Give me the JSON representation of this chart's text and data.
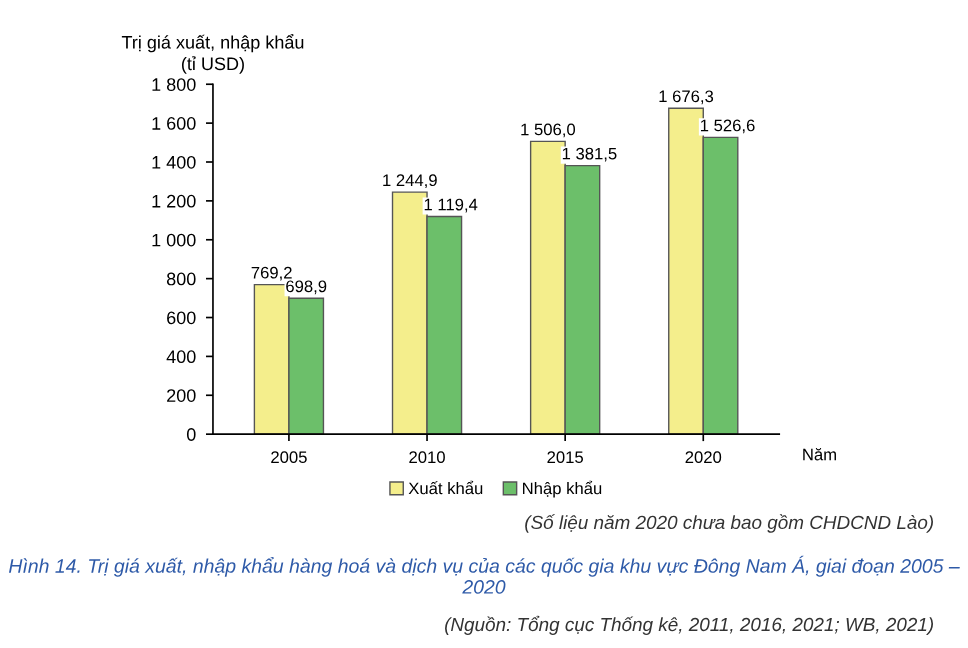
{
  "chart_data": {
    "type": "bar",
    "title": "Hình 14. Trị giá xuất, nhập khẩu hàng hoá và dịch vụ của các quốc gia khu vực Đông Nam Á, giai đoạn 2005 – 2020",
    "ylabel": "Trị giá xuất, nhập khẩu\n(tỉ USD)",
    "xlabel": "Năm",
    "categories": [
      "2005",
      "2010",
      "2015",
      "2020"
    ],
    "series": [
      {
        "name": "Xuất khẩu",
        "color": "#f4ee8c",
        "values": [
          769.2,
          1244.9,
          1506.0,
          1676.3
        ],
        "value_labels": [
          "769,2",
          "1 244,9",
          "1 506,0",
          "1 676,3"
        ]
      },
      {
        "name": "Nhập khẩu",
        "color": "#6cbf6a",
        "values": [
          698.9,
          1119.4,
          1381.5,
          1526.6
        ],
        "value_labels": [
          "698,9",
          "1 119,4",
          "1 381,5",
          "1 526,6"
        ]
      }
    ],
    "ylim": [
      0,
      1800
    ],
    "yticks": [
      0,
      200,
      400,
      600,
      800,
      {
        "value": 1000,
        "label": "1 000"
      },
      {
        "value": 1200,
        "label": "1 200"
      },
      {
        "value": 1400,
        "label": "1 400"
      },
      {
        "value": 1600,
        "label": "1 600"
      },
      {
        "value": 1800,
        "label": "1 800"
      }
    ],
    "legend": "bottom",
    "grid": false,
    "annotations": [
      "(Số liệu năm 2020 chưa bao gồm CHDCND Lào)",
      "(Nguồn: Tổng cục Thống kê, 2011, 2016, 2021; WB, 2021)"
    ]
  }
}
